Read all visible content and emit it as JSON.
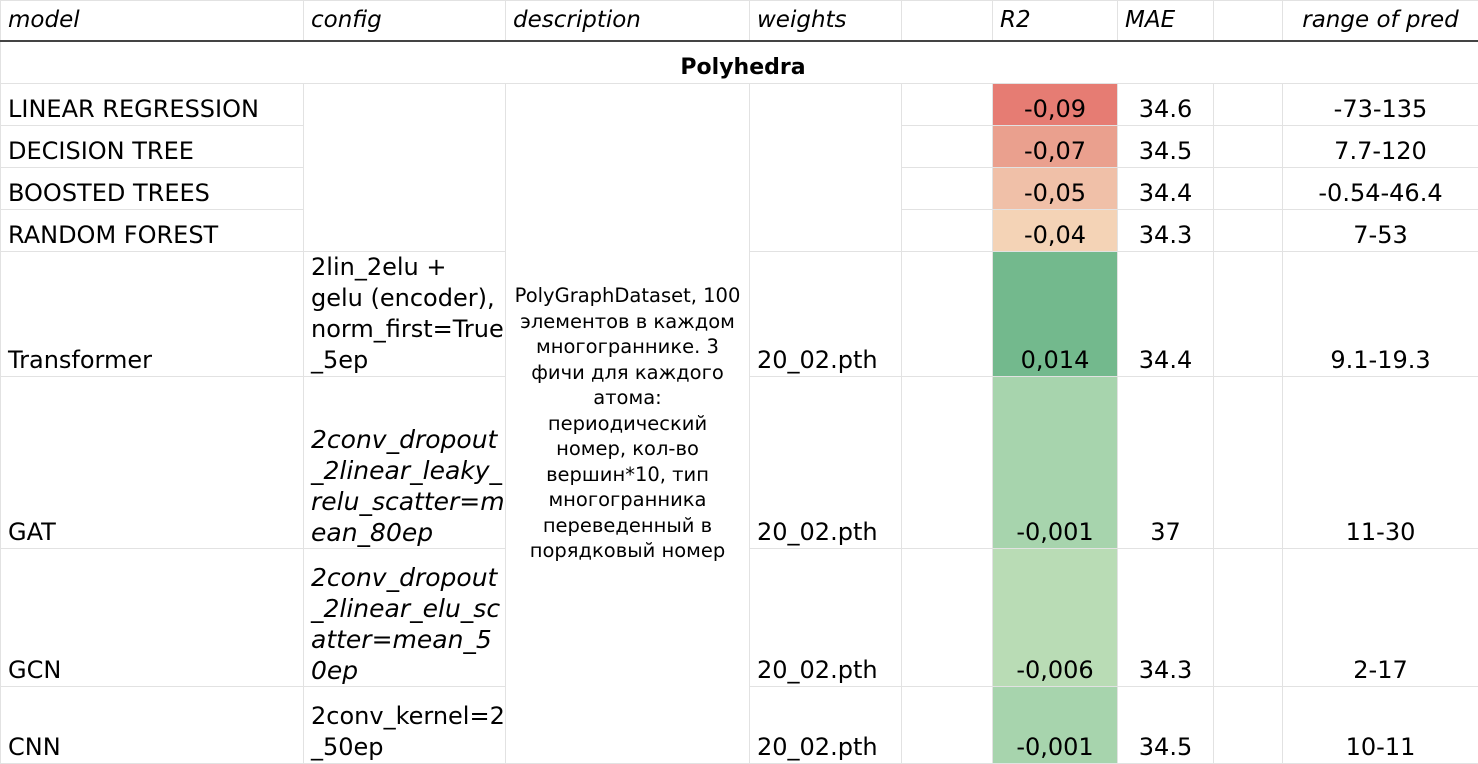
{
  "headers": {
    "model": "model",
    "config": "config",
    "description": "description",
    "weights": "weights",
    "blank": "",
    "r2": "R2",
    "mae": "MAE",
    "blank2": "",
    "range": "range of pred"
  },
  "section_title": "Polyhedra",
  "description_text": "PolyGraphDataset, 100 элементов в каждом многограннике. 3 фичи для каждого атома: периодический номер, кол-во вершин*10, тип многогранника переведенный в порядковый номер",
  "rows": [
    {
      "model": "LINEAR REGRESSION",
      "config": "",
      "weights": "",
      "r2": "-0,09",
      "mae": "34.6",
      "range": "-73-135",
      "r2_color": "#e67c73"
    },
    {
      "model": "DECISION TREE",
      "config": "",
      "weights": "",
      "r2": "-0,07",
      "mae": "34.5",
      "range": "7.7-120",
      "r2_color": "#eaa08e"
    },
    {
      "model": "BOOSTED TREES",
      "config": "",
      "weights": "",
      "r2": "-0,05",
      "mae": "34.4",
      "range": "-0.54-46.4",
      "r2_color": "#f0c0a8"
    },
    {
      "model": "RANDOM FOREST",
      "config": "",
      "weights": "",
      "r2": "-0,04",
      "mae": "34.3",
      "range": "7-53",
      "r2_color": "#f4d3b6"
    },
    {
      "model": "Transformer",
      "config": "2lin_2elu + gelu (encoder), norm_first=True_5ep",
      "weights": "20_02.pth",
      "r2": "0,014",
      "mae": "34.4",
      "range": "9.1-19.3",
      "r2_color": "#73b98d"
    },
    {
      "model": "GAT",
      "config": "2conv_dropout_2linear_leaky_relu_scatter=mean_80ep",
      "weights": "20_02.pth",
      "r2": "-0,001",
      "mae": "37",
      "range": "11-30",
      "r2_color": "#a7d4ad"
    },
    {
      "model": "GCN",
      "config": "2conv_dropout_2linear_elu_scatter=mean_50ep",
      "weights": "20_02.pth",
      "r2": "-0,006",
      "mae": "34.3",
      "range": "2-17",
      "r2_color": "#b9dcb5"
    },
    {
      "model": "CNN",
      "config": "2conv_kernel=2_50ep",
      "weights": "20_02.pth",
      "r2": "-0,001",
      "mae": "34.5",
      "range": "10-11",
      "r2_color": "#a7d4ad"
    }
  ]
}
